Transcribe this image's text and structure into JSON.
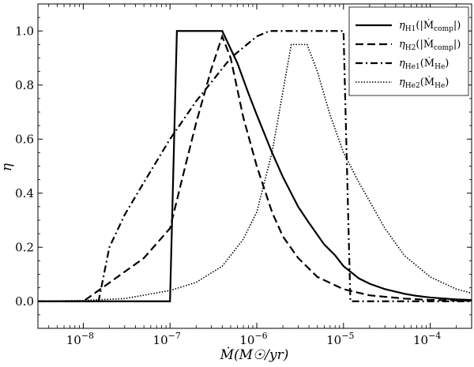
{
  "chart_data": {
    "type": "line",
    "title": "",
    "xlabel": "Ṁ(M☉/yr)",
    "ylabel": "η",
    "xscale": "log",
    "xlim": [
      3e-09,
      0.0003
    ],
    "ylim": [
      -0.1,
      1.1
    ],
    "grid": false,
    "legend_position": "top-right",
    "y_ticks": [
      {
        "value": 0.0,
        "label": "0.0"
      },
      {
        "value": 0.2,
        "label": "0.2"
      },
      {
        "value": 0.4,
        "label": "0.4"
      },
      {
        "value": 0.6,
        "label": "0.6"
      },
      {
        "value": 0.8,
        "label": "0.8"
      },
      {
        "value": 1.0,
        "label": "1.0"
      }
    ],
    "x_ticks": [
      {
        "value": 1e-08,
        "base": "10",
        "exp": "−8"
      },
      {
        "value": 1e-07,
        "base": "10",
        "exp": "−7"
      },
      {
        "value": 1e-06,
        "base": "10",
        "exp": "−6"
      },
      {
        "value": 1e-05,
        "base": "10",
        "exp": "−5"
      },
      {
        "value": 0.0001,
        "base": "10",
        "exp": "−4"
      }
    ],
    "series": [
      {
        "name": "η_H1(|Ṁ_comp|)",
        "legend": {
          "sym": "η",
          "sub": "H1",
          "arg": "(|Ṁ",
          "argsub": "comp",
          "close": "|)"
        },
        "style": "solid",
        "x": [
          3e-09,
          1e-07,
          1.2e-07,
          4e-07,
          6e-07,
          8e-07,
          1e-06,
          1.5e-06,
          2e-06,
          3e-06,
          4e-06,
          6e-06,
          8e-06,
          1e-05,
          1.5e-05,
          2e-05,
          3e-05,
          5e-05,
          7e-05,
          0.0001,
          0.0002,
          0.0003
        ],
        "y": [
          0.0,
          0.0,
          1.0,
          1.0,
          0.88,
          0.77,
          0.69,
          0.55,
          0.46,
          0.35,
          0.29,
          0.21,
          0.17,
          0.13,
          0.085,
          0.065,
          0.045,
          0.028,
          0.02,
          0.014,
          0.007,
          0.005
        ]
      },
      {
        "name": "η_H2(|Ṁ_comp|)",
        "legend": {
          "sym": "η",
          "sub": "H2",
          "arg": "(|Ṁ",
          "argsub": "comp",
          "close": "|)"
        },
        "style": "dashed",
        "x": [
          3e-09,
          1e-08,
          1.5e-08,
          5e-08,
          1e-07,
          1.5e-07,
          2e-07,
          3e-07,
          4e-07,
          5e-07,
          7e-07,
          1e-06,
          1.5e-06,
          2e-06,
          3e-06,
          5e-06,
          1e-05,
          2e-05,
          5e-05,
          0.0001,
          0.0003
        ],
        "y": [
          0.0,
          0.0,
          0.04,
          0.16,
          0.27,
          0.5,
          0.66,
          0.86,
          0.98,
          0.9,
          0.68,
          0.5,
          0.33,
          0.24,
          0.16,
          0.09,
          0.045,
          0.022,
          0.01,
          0.005,
          0.002
        ]
      },
      {
        "name": "η_He1(Ṁ_He)",
        "legend": {
          "sym": "η",
          "sub": "He1",
          "arg": "(Ṁ",
          "argsub": "He",
          "close": ")"
        },
        "style": "dashdot",
        "x": [
          3e-09,
          1.5e-08,
          2e-08,
          3e-08,
          5e-08,
          1e-07,
          2e-07,
          5e-07,
          1e-06,
          1.4e-06,
          1e-05,
          1.2e-05,
          0.0003
        ],
        "y": [
          0.0,
          0.0,
          0.2,
          0.32,
          0.44,
          0.6,
          0.74,
          0.9,
          0.98,
          1.0,
          1.0,
          0.0,
          0.0
        ]
      },
      {
        "name": "η_He2(Ṁ_He)",
        "legend": {
          "sym": "η",
          "sub": "He2",
          "arg": "(Ṁ",
          "argsub": "He",
          "close": ")"
        },
        "style": "dotted",
        "x": [
          3e-09,
          1e-08,
          3e-08,
          1e-07,
          2e-07,
          4e-07,
          7e-07,
          1e-06,
          1.5e-06,
          2.5e-06,
          3.8e-06,
          5e-06,
          7e-06,
          1e-05,
          1.5e-05,
          2e-05,
          3e-05,
          5e-05,
          0.0001,
          0.0002,
          0.0003
        ],
        "y": [
          0.0,
          0.003,
          0.01,
          0.04,
          0.07,
          0.13,
          0.23,
          0.33,
          0.55,
          0.95,
          0.95,
          0.85,
          0.69,
          0.55,
          0.44,
          0.37,
          0.27,
          0.17,
          0.09,
          0.045,
          0.03
        ]
      }
    ]
  }
}
